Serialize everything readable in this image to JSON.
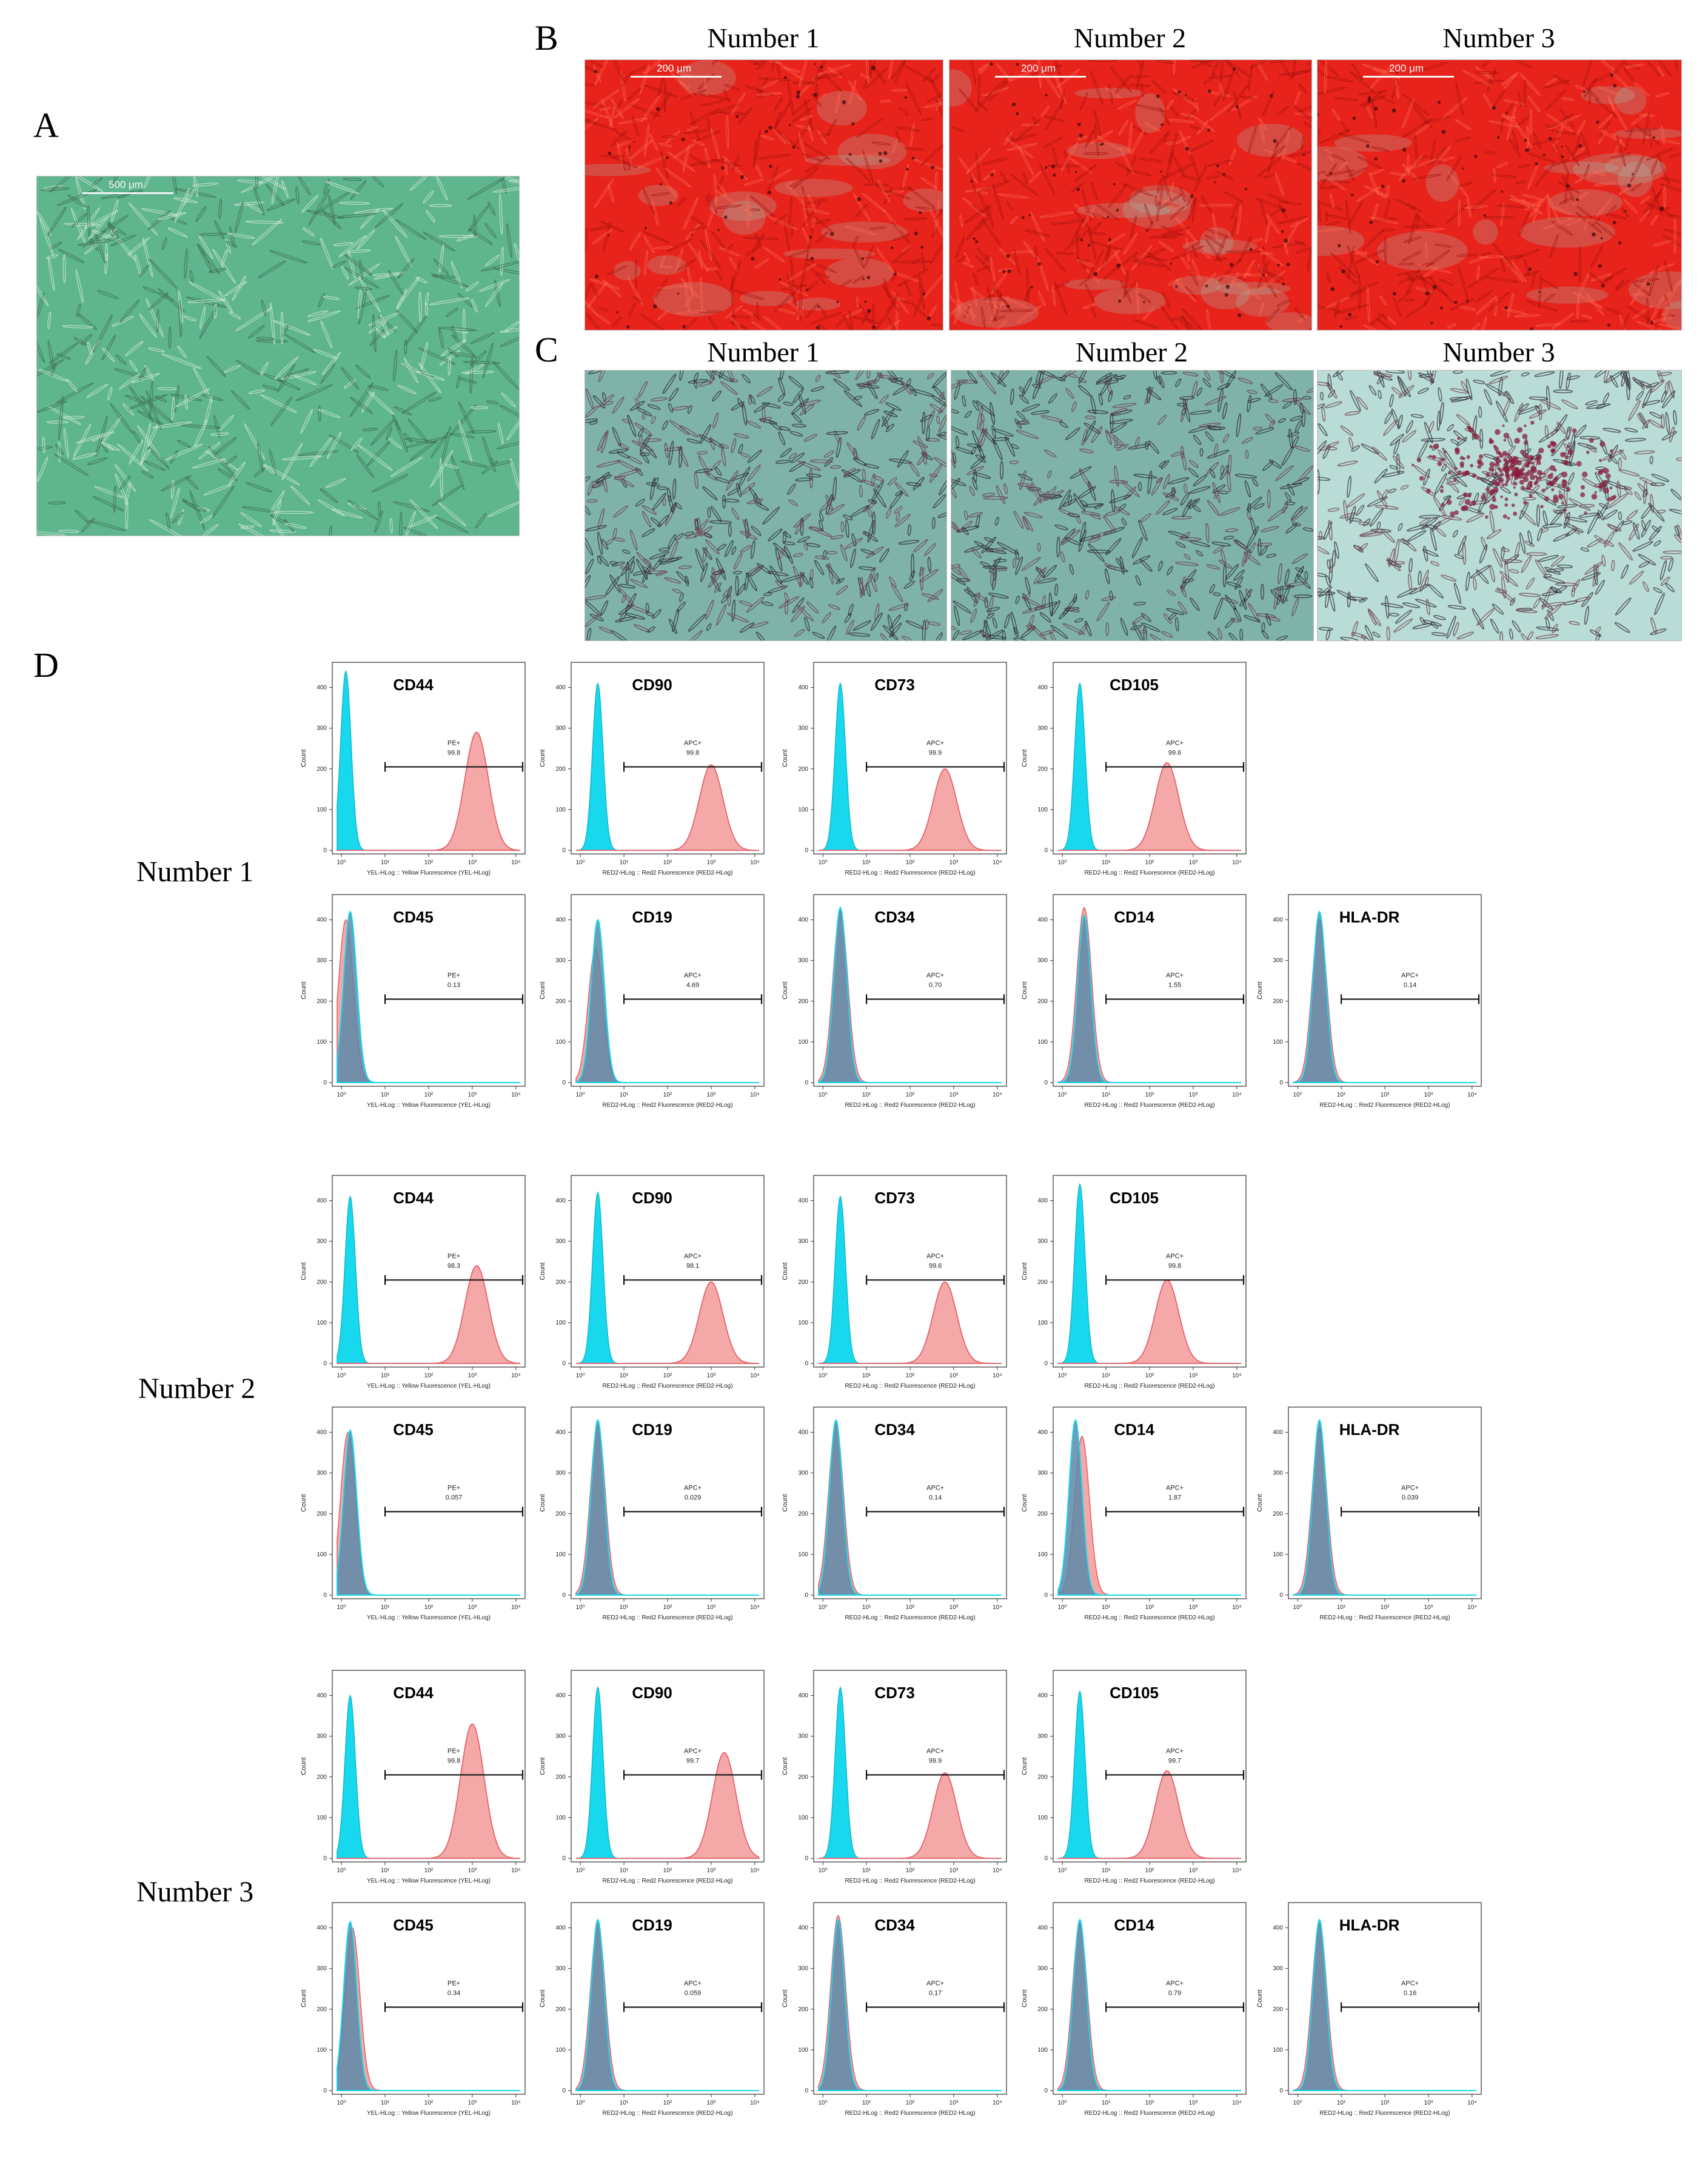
{
  "panels": {
    "A": "A",
    "B": "B",
    "C": "C",
    "D": "D"
  },
  "panel_a": {
    "scale_label": "500 μm"
  },
  "panel_b": {
    "columns": [
      "Number 1",
      "Number 2",
      "Number 3"
    ],
    "scale_label": "200 μm"
  },
  "panel_c": {
    "columns": [
      "Number 1",
      "Number 2",
      "Number 3"
    ]
  },
  "rows": [
    "Number 1",
    "Number 2",
    "Number 3"
  ],
  "colors": {
    "control_fill": "#18d8ee",
    "positive_fill": "#f4a8a8",
    "positive_line": "#e8626a",
    "overlap_fill": "#5a8aa8",
    "panel_a_bg": "#5fb58e",
    "panel_b_bg": "#e8231c",
    "panel_c_bg": "#7fb3aa"
  },
  "chart_data": [
    {
      "type": "histogram",
      "sample": "Number 1",
      "marker": "CD44",
      "gate_label": "PE+",
      "gate_value": "99.8",
      "xlabel": "YEL-HLog :: Yellow Fluorescence (YEL-HLog)",
      "ylabel": "Count",
      "ylim": [
        0,
        450
      ],
      "yticks": [
        "0",
        "100",
        "200",
        "300",
        "400"
      ],
      "xticks": [
        "10⁰",
        "10¹",
        "10²",
        "10³",
        "10⁴"
      ],
      "control_peak_log": 0.1,
      "control_peak_count": 440,
      "stain_peak_log": 3.1,
      "stain_peak_count": 290
    },
    {
      "type": "histogram",
      "sample": "Number 1",
      "marker": "CD90",
      "gate_label": "APC+",
      "gate_value": "99.8",
      "xlabel": "RED2-HLog :: Red2 Fluorescence (RED2-HLog)",
      "ylabel": "Count",
      "ylim": [
        0,
        450
      ],
      "yticks": [
        "0",
        "100",
        "200",
        "300",
        "400"
      ],
      "xticks": [
        "10⁰",
        "10¹",
        "10²",
        "10³",
        "10⁴"
      ],
      "control_peak_log": 0.4,
      "control_peak_count": 410,
      "stain_peak_log": 3.0,
      "stain_peak_count": 210
    },
    {
      "type": "histogram",
      "sample": "Number 1",
      "marker": "CD73",
      "gate_label": "APC+",
      "gate_value": "99.9",
      "xlabel": "RED2-HLog :: Red2 Fluorescence (RED2-HLog)",
      "ylabel": "Count",
      "ylim": [
        0,
        450
      ],
      "yticks": [
        "0",
        "100",
        "200",
        "300",
        "400"
      ],
      "xticks": [
        "10⁰",
        "10¹",
        "10²",
        "10³",
        "10⁴"
      ],
      "control_peak_log": 0.4,
      "control_peak_count": 410,
      "stain_peak_log": 2.8,
      "stain_peak_count": 200
    },
    {
      "type": "histogram",
      "sample": "Number 1",
      "marker": "CD105",
      "gate_label": "APC+",
      "gate_value": "99.6",
      "xlabel": "RED2-HLog :: Red2 Fluorescence (RED2-HLog)",
      "ylabel": "Count",
      "ylim": [
        0,
        450
      ],
      "yticks": [
        "0",
        "100",
        "200",
        "300",
        "400"
      ],
      "xticks": [
        "10⁰",
        "10¹",
        "10²",
        "10³",
        "10⁴"
      ],
      "control_peak_log": 0.4,
      "control_peak_count": 410,
      "stain_peak_log": 2.4,
      "stain_peak_count": 215
    },
    {
      "type": "histogram",
      "sample": "Number 1",
      "marker": "CD45",
      "gate_label": "PE+",
      "gate_value": "0.13",
      "xlabel": "YEL-HLog :: Yellow Fluorescence (YEL-HLog)",
      "ylabel": "Count",
      "ylim": [
        0,
        450
      ],
      "yticks": [
        "0",
        "100",
        "200",
        "300",
        "400"
      ],
      "xticks": [
        "10⁰",
        "10¹",
        "10²",
        "10³",
        "10⁴"
      ],
      "control_peak_log": 0.2,
      "control_peak_count": 420,
      "stain_peak_log": 0.1,
      "stain_peak_count": 400
    },
    {
      "type": "histogram",
      "sample": "Number 1",
      "marker": "CD19",
      "gate_label": "APC+",
      "gate_value": "4.69",
      "xlabel": "RED2-HLog :: Red2 Fluorescence (RED2-HLog)",
      "ylabel": "Count",
      "ylim": [
        0,
        450
      ],
      "yticks": [
        "0",
        "100",
        "200",
        "300",
        "400"
      ],
      "xticks": [
        "10⁰",
        "10¹",
        "10²",
        "10³",
        "10⁴"
      ],
      "control_peak_log": 0.4,
      "control_peak_count": 400,
      "stain_peak_log": 0.35,
      "stain_peak_count": 330
    },
    {
      "type": "histogram",
      "sample": "Number 1",
      "marker": "CD34",
      "gate_label": "APC+",
      "gate_value": "0.70",
      "xlabel": "RED2-HLog :: Red2 Fluorescence (RED2-HLog)",
      "ylabel": "Count",
      "ylim": [
        0,
        450
      ],
      "yticks": [
        "0",
        "100",
        "200",
        "300",
        "400"
      ],
      "xticks": [
        "10⁰",
        "10¹",
        "10²",
        "10³",
        "10⁴"
      ],
      "control_peak_log": 0.4,
      "control_peak_count": 430,
      "stain_peak_log": 0.4,
      "stain_peak_count": 420
    },
    {
      "type": "histogram",
      "sample": "Number 1",
      "marker": "CD14",
      "gate_label": "APC+",
      "gate_value": "1.55",
      "xlabel": "RED2-HLog :: Red2 Fluorescence (RED2-HLog)",
      "ylabel": "Count",
      "ylim": [
        0,
        450
      ],
      "yticks": [
        "0",
        "100",
        "200",
        "300",
        "400"
      ],
      "xticks": [
        "10⁰",
        "10¹",
        "10²",
        "10³",
        "10⁴"
      ],
      "control_peak_log": 0.5,
      "control_peak_count": 410,
      "stain_peak_log": 0.5,
      "stain_peak_count": 430
    },
    {
      "type": "histogram",
      "sample": "Number 1",
      "marker": "HLA-DR",
      "gate_label": "APC+",
      "gate_value": "0.14",
      "xlabel": "RED2-HLog :: Red2 Fluorescence (RED2-HLog)",
      "ylabel": "Count",
      "ylim": [
        0,
        450
      ],
      "yticks": [
        "0",
        "100",
        "200",
        "300",
        "400"
      ],
      "xticks": [
        "10⁰",
        "10¹",
        "10²",
        "10³",
        "10⁴"
      ],
      "control_peak_log": 0.5,
      "control_peak_count": 420,
      "stain_peak_log": 0.5,
      "stain_peak_count": 400
    },
    {
      "type": "histogram",
      "sample": "Number 2",
      "marker": "CD44",
      "gate_label": "PE+",
      "gate_value": "98.3",
      "xlabel": "YEL-HLog :: Yellow Fluorescence (YEL-HLog)",
      "ylabel": "Count",
      "ylim": [
        0,
        450
      ],
      "yticks": [
        "0",
        "100",
        "200",
        "300",
        "400"
      ],
      "xticks": [
        "10⁰",
        "10¹",
        "10²",
        "10³",
        "10⁴"
      ],
      "control_peak_log": 0.2,
      "control_peak_count": 410,
      "stain_peak_log": 3.1,
      "stain_peak_count": 240
    },
    {
      "type": "histogram",
      "sample": "Number 2",
      "marker": "CD90",
      "gate_label": "APC+",
      "gate_value": "98.1",
      "xlabel": "RED2-HLog :: Red2 Fluorescence (RED2-HLog)",
      "ylabel": "Count",
      "ylim": [
        0,
        450
      ],
      "yticks": [
        "0",
        "100",
        "200",
        "300",
        "400"
      ],
      "xticks": [
        "10⁰",
        "10¹",
        "10²",
        "10³",
        "10⁴"
      ],
      "control_peak_log": 0.4,
      "control_peak_count": 420,
      "stain_peak_log": 3.0,
      "stain_peak_count": 200
    },
    {
      "type": "histogram",
      "sample": "Number 2",
      "marker": "CD73",
      "gate_label": "APC+",
      "gate_value": "99.6",
      "xlabel": "RED2-HLog :: Red2 Fluorescence (RED2-HLog)",
      "ylabel": "Count",
      "ylim": [
        0,
        450
      ],
      "yticks": [
        "0",
        "100",
        "200",
        "300",
        "400"
      ],
      "xticks": [
        "10⁰",
        "10¹",
        "10²",
        "10³",
        "10⁴"
      ],
      "control_peak_log": 0.4,
      "control_peak_count": 410,
      "stain_peak_log": 2.8,
      "stain_peak_count": 200
    },
    {
      "type": "histogram",
      "sample": "Number 2",
      "marker": "CD105",
      "gate_label": "APC+",
      "gate_value": "99.8",
      "xlabel": "RED2-HLog :: Red2 Fluorescence (RED2-HLog)",
      "ylabel": "Count",
      "ylim": [
        0,
        450
      ],
      "yticks": [
        "0",
        "100",
        "200",
        "300",
        "400"
      ],
      "xticks": [
        "10⁰",
        "10¹",
        "10²",
        "10³",
        "10⁴"
      ],
      "control_peak_log": 0.4,
      "control_peak_count": 440,
      "stain_peak_log": 2.4,
      "stain_peak_count": 205
    },
    {
      "type": "histogram",
      "sample": "Number 2",
      "marker": "CD45",
      "gate_label": "PE+",
      "gate_value": "0.057",
      "xlabel": "YEL-HLog :: Yellow Fluorescence (YEL-HLog)",
      "ylabel": "Count",
      "ylim": [
        0,
        450
      ],
      "yticks": [
        "0",
        "100",
        "200",
        "300",
        "400"
      ],
      "xticks": [
        "10⁰",
        "10¹",
        "10²",
        "10³",
        "10⁴"
      ],
      "control_peak_log": 0.2,
      "control_peak_count": 405,
      "stain_peak_log": 0.15,
      "stain_peak_count": 400
    },
    {
      "type": "histogram",
      "sample": "Number 2",
      "marker": "CD19",
      "gate_label": "APC+",
      "gate_value": "0.029",
      "xlabel": "RED2-HLog :: Red2 Fluorescence (RED2-HLog)",
      "ylabel": "Count",
      "ylim": [
        0,
        450
      ],
      "yticks": [
        "0",
        "100",
        "200",
        "300",
        "400"
      ],
      "xticks": [
        "10⁰",
        "10¹",
        "10²",
        "10³",
        "10⁴"
      ],
      "control_peak_log": 0.4,
      "control_peak_count": 430,
      "stain_peak_log": 0.4,
      "stain_peak_count": 420
    },
    {
      "type": "histogram",
      "sample": "Number 2",
      "marker": "CD34",
      "gate_label": "APC+",
      "gate_value": "0.14",
      "xlabel": "RED2-HLog :: Red2 Fluorescence (RED2-HLog)",
      "ylabel": "Count",
      "ylim": [
        0,
        450
      ],
      "yticks": [
        "0",
        "100",
        "200",
        "300",
        "400"
      ],
      "xticks": [
        "10⁰",
        "10¹",
        "10²",
        "10³",
        "10⁴"
      ],
      "control_peak_log": 0.3,
      "control_peak_count": 430,
      "stain_peak_log": 0.3,
      "stain_peak_count": 420
    },
    {
      "type": "histogram",
      "sample": "Number 2",
      "marker": "CD14",
      "gate_label": "APC+",
      "gate_value": "1.87",
      "xlabel": "RED2-HLog :: Red2 Fluorescence (RED2-HLog)",
      "ylabel": "Count",
      "ylim": [
        0,
        450
      ],
      "yticks": [
        "0",
        "100",
        "200",
        "300",
        "400"
      ],
      "xticks": [
        "10⁰",
        "10¹",
        "10²",
        "10³",
        "10⁴"
      ],
      "control_peak_log": 0.3,
      "control_peak_count": 430,
      "stain_peak_log": 0.45,
      "stain_peak_count": 390
    },
    {
      "type": "histogram",
      "sample": "Number 2",
      "marker": "HLA-DR",
      "gate_label": "APC+",
      "gate_value": "0.039",
      "xlabel": "RED2-HLog :: Red2 Fluorescence (RED2-HLog)",
      "ylabel": "Count",
      "ylim": [
        0,
        450
      ],
      "yticks": [
        "0",
        "100",
        "200",
        "300",
        "400"
      ],
      "xticks": [
        "10⁰",
        "10¹",
        "10²",
        "10³",
        "10⁴"
      ],
      "control_peak_log": 0.5,
      "control_peak_count": 430,
      "stain_peak_log": 0.5,
      "stain_peak_count": 410
    },
    {
      "type": "histogram",
      "sample": "Number 3",
      "marker": "CD44",
      "gate_label": "PE+",
      "gate_value": "99.8",
      "xlabel": "YEL-HLog :: Yellow Fluorescence (YEL-HLog)",
      "ylabel": "Count",
      "ylim": [
        0,
        450
      ],
      "yticks": [
        "0",
        "100",
        "200",
        "300",
        "400"
      ],
      "xticks": [
        "10⁰",
        "10¹",
        "10²",
        "10³",
        "10⁴"
      ],
      "control_peak_log": 0.2,
      "control_peak_count": 400,
      "stain_peak_log": 3.0,
      "stain_peak_count": 330
    },
    {
      "type": "histogram",
      "sample": "Number 3",
      "marker": "CD90",
      "gate_label": "APC+",
      "gate_value": "99.7",
      "xlabel": "RED2-HLog :: Red2 Fluorescence (RED2-HLog)",
      "ylabel": "Count",
      "ylim": [
        0,
        450
      ],
      "yticks": [
        "0",
        "100",
        "200",
        "300",
        "400"
      ],
      "xticks": [
        "10⁰",
        "10¹",
        "10²",
        "10³",
        "10⁴"
      ],
      "control_peak_log": 0.4,
      "control_peak_count": 420,
      "stain_peak_log": 3.3,
      "stain_peak_count": 260
    },
    {
      "type": "histogram",
      "sample": "Number 3",
      "marker": "CD73",
      "gate_label": "APC+",
      "gate_value": "99.9",
      "xlabel": "RED2-HLog :: Red2 Fluorescence (RED2-HLog)",
      "ylabel": "Count",
      "ylim": [
        0,
        450
      ],
      "yticks": [
        "0",
        "100",
        "200",
        "300",
        "400"
      ],
      "xticks": [
        "10⁰",
        "10¹",
        "10²",
        "10³",
        "10⁴"
      ],
      "control_peak_log": 0.4,
      "control_peak_count": 420,
      "stain_peak_log": 2.8,
      "stain_peak_count": 210
    },
    {
      "type": "histogram",
      "sample": "Number 3",
      "marker": "CD105",
      "gate_label": "APC+",
      "gate_value": "99.7",
      "xlabel": "RED2-HLog :: Red2 Fluorescence (RED2-HLog)",
      "ylabel": "Count",
      "ylim": [
        0,
        450
      ],
      "yticks": [
        "0",
        "100",
        "200",
        "300",
        "400"
      ],
      "xticks": [
        "10⁰",
        "10¹",
        "10²",
        "10³",
        "10⁴"
      ],
      "control_peak_log": 0.4,
      "control_peak_count": 410,
      "stain_peak_log": 2.4,
      "stain_peak_count": 215
    },
    {
      "type": "histogram",
      "sample": "Number 3",
      "marker": "CD45",
      "gate_label": "PE+",
      "gate_value": "0.34",
      "xlabel": "YEL-HLog :: Yellow Fluorescence (YEL-HLog)",
      "ylabel": "Count",
      "ylim": [
        0,
        450
      ],
      "yticks": [
        "0",
        "100",
        "200",
        "300",
        "400"
      ],
      "xticks": [
        "10⁰",
        "10¹",
        "10²",
        "10³",
        "10⁴"
      ],
      "control_peak_log": 0.2,
      "control_peak_count": 415,
      "stain_peak_log": 0.25,
      "stain_peak_count": 400
    },
    {
      "type": "histogram",
      "sample": "Number 3",
      "marker": "CD19",
      "gate_label": "APC+",
      "gate_value": "0.059",
      "xlabel": "RED2-HLog :: Red2 Fluorescence (RED2-HLog)",
      "ylabel": "Count",
      "ylim": [
        0,
        450
      ],
      "yticks": [
        "0",
        "100",
        "200",
        "300",
        "400"
      ],
      "xticks": [
        "10⁰",
        "10¹",
        "10²",
        "10³",
        "10⁴"
      ],
      "control_peak_log": 0.4,
      "control_peak_count": 420,
      "stain_peak_log": 0.4,
      "stain_peak_count": 410
    },
    {
      "type": "histogram",
      "sample": "Number 3",
      "marker": "CD34",
      "gate_label": "APC+",
      "gate_value": "0.17",
      "xlabel": "RED2-HLog :: Red2 Fluorescence (RED2-HLog)",
      "ylabel": "Count",
      "ylim": [
        0,
        450
      ],
      "yticks": [
        "0",
        "100",
        "200",
        "300",
        "400"
      ],
      "xticks": [
        "10⁰",
        "10¹",
        "10²",
        "10³",
        "10⁴"
      ],
      "control_peak_log": 0.35,
      "control_peak_count": 420,
      "stain_peak_log": 0.35,
      "stain_peak_count": 430
    },
    {
      "type": "histogram",
      "sample": "Number 3",
      "marker": "CD14",
      "gate_label": "APC+",
      "gate_value": "0.79",
      "xlabel": "RED2-HLog :: Red2 Fluorescence (RED2-HLog)",
      "ylabel": "Count",
      "ylim": [
        0,
        450
      ],
      "yticks": [
        "0",
        "100",
        "200",
        "300",
        "400"
      ],
      "xticks": [
        "10⁰",
        "10¹",
        "10²",
        "10³",
        "10⁴"
      ],
      "control_peak_log": 0.4,
      "control_peak_count": 420,
      "stain_peak_log": 0.4,
      "stain_peak_count": 410
    },
    {
      "type": "histogram",
      "sample": "Number 3",
      "marker": "HLA-DR",
      "gate_label": "APC+",
      "gate_value": "0.16",
      "xlabel": "RED2-HLog :: Red2 Fluorescence (RED2-HLog)",
      "ylabel": "Count",
      "ylim": [
        0,
        450
      ],
      "yticks": [
        "0",
        "100",
        "200",
        "300",
        "400"
      ],
      "xticks": [
        "10⁰",
        "10¹",
        "10²",
        "10³",
        "10⁴"
      ],
      "control_peak_log": 0.5,
      "control_peak_count": 420,
      "stain_peak_log": 0.5,
      "stain_peak_count": 410
    }
  ]
}
